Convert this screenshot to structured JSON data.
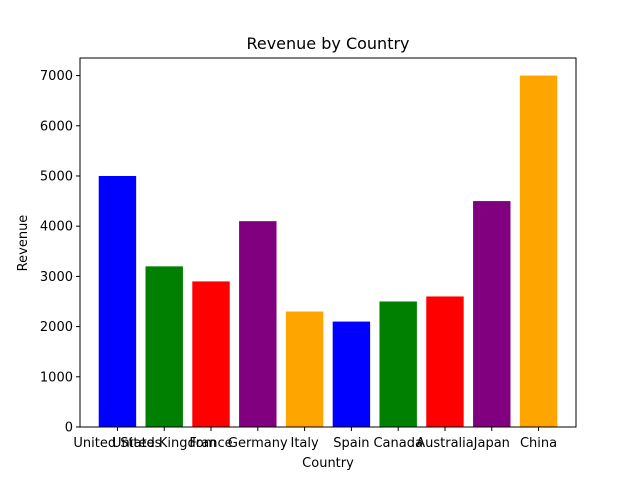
{
  "chart_data": {
    "type": "bar",
    "title": "Revenue by Country",
    "xlabel": "Country",
    "ylabel": "Revenue",
    "categories": [
      "United States",
      "United Kingdom",
      "France",
      "Germany",
      "Italy",
      "Spain",
      "Canada",
      "Australia",
      "Japan",
      "China"
    ],
    "values": [
      5000,
      3200,
      2900,
      4100,
      2300,
      2100,
      2500,
      2600,
      4500,
      7000
    ],
    "colors": [
      "#0000ff",
      "#008000",
      "#ff0000",
      "#800080",
      "#ffa500",
      "#0000ff",
      "#008000",
      "#ff0000",
      "#800080",
      "#ffa500"
    ],
    "ylim": [
      0,
      7350
    ],
    "yticks": [
      0,
      1000,
      2000,
      3000,
      4000,
      5000,
      6000,
      7000
    ],
    "grid": false,
    "legend": "none"
  }
}
